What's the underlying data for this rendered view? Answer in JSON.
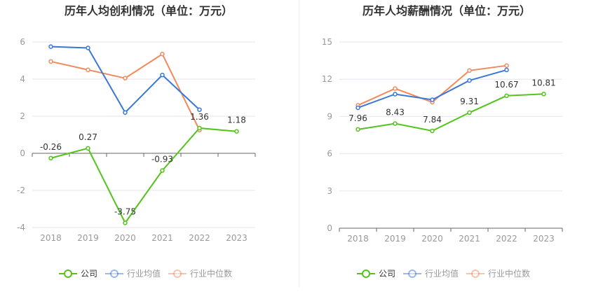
{
  "chart_data": [
    {
      "type": "line",
      "title": "历年人均创利情况（单位：万元）",
      "categories": [
        "2018",
        "2019",
        "2020",
        "2021",
        "2022",
        "2023"
      ],
      "ylim": [
        -4,
        6
      ],
      "yticks": [
        -4,
        -2,
        0,
        2,
        4,
        6
      ],
      "grid": true,
      "legend_position": "bottom",
      "series": [
        {
          "name": "公司",
          "color": "#52c41a",
          "values": [
            -0.26,
            0.27,
            -3.75,
            -0.93,
            1.36,
            1.18
          ],
          "labels": [
            "-0.26",
            "0.27",
            "-3.75",
            "-0.93",
            "1.36",
            "1.18"
          ]
        },
        {
          "name": "行业均值",
          "color": "#3a78d8",
          "values": [
            5.75,
            5.68,
            2.2,
            4.22,
            2.35,
            null
          ]
        },
        {
          "name": "行业中位数",
          "color": "#f08a5d",
          "values": [
            4.95,
            4.5,
            4.05,
            5.35,
            1.25,
            null
          ]
        }
      ]
    },
    {
      "type": "line",
      "title": "历年人均薪酬情况（单位：万元）",
      "categories": [
        "2018",
        "2019",
        "2020",
        "2021",
        "2022",
        "2023"
      ],
      "ylim": [
        0,
        15
      ],
      "yticks": [
        0,
        3,
        6,
        9,
        12,
        15
      ],
      "grid": true,
      "legend_position": "bottom",
      "series": [
        {
          "name": "公司",
          "color": "#52c41a",
          "values": [
            7.96,
            8.43,
            7.84,
            9.31,
            10.67,
            10.81
          ],
          "labels": [
            "7.96",
            "8.43",
            "7.84",
            "9.31",
            "10.67",
            "10.81"
          ]
        },
        {
          "name": "行业均值",
          "color": "#3a78d8",
          "values": [
            9.7,
            10.8,
            10.35,
            11.9,
            12.75,
            null
          ]
        },
        {
          "name": "行业中位数",
          "color": "#f08a5d",
          "values": [
            9.9,
            11.25,
            10.15,
            12.7,
            13.1,
            null
          ]
        }
      ]
    }
  ]
}
